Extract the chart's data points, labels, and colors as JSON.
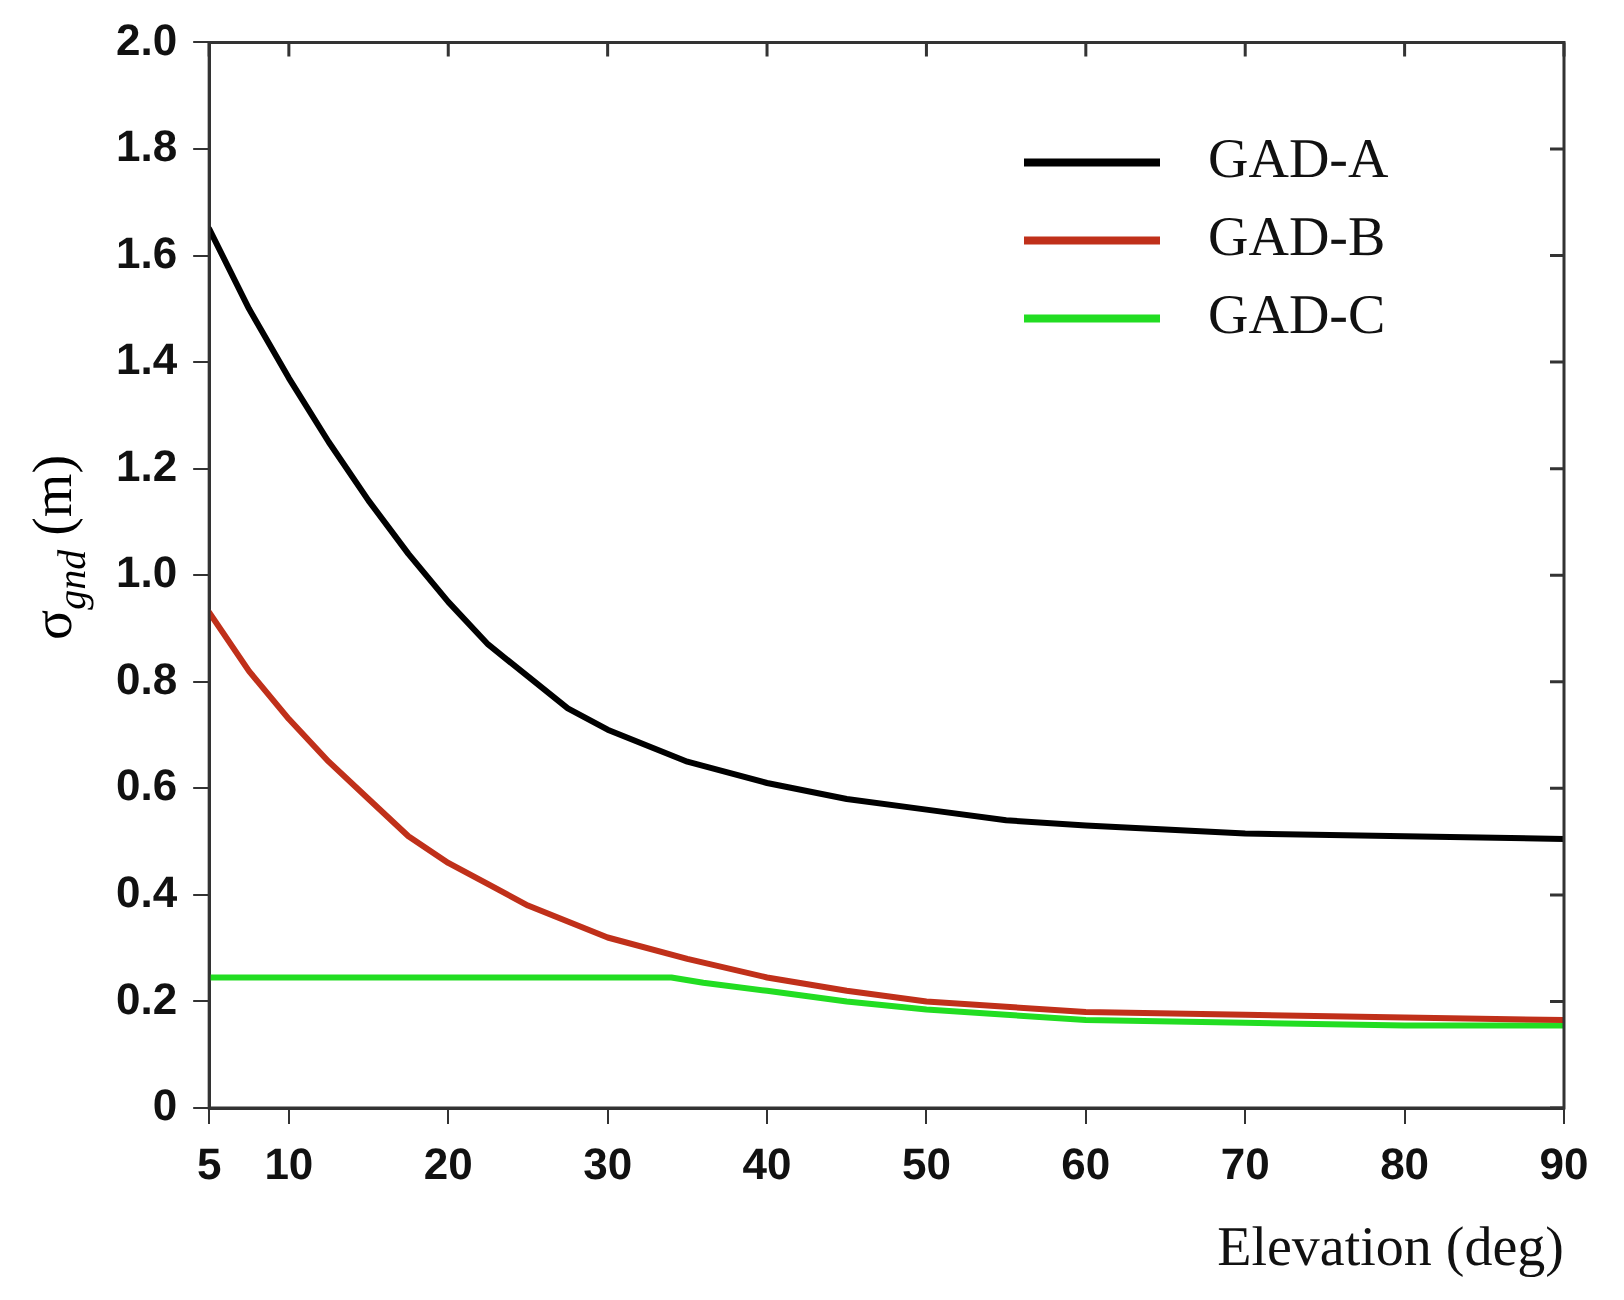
{
  "chart_data": {
    "type": "line",
    "xlabel": "Elevation (deg)",
    "ylabel": "σ$_{gnd}$ (m)",
    "xlim": [
      5,
      90
    ],
    "xticks": [
      5,
      10,
      20,
      30,
      40,
      50,
      60,
      70,
      80,
      90
    ],
    "ylim": [
      0,
      2
    ],
    "yticks": [
      0,
      0.2,
      0.4,
      0.6,
      0.8,
      {
        "value": 1,
        "label": "1.0"
      },
      1.2,
      1.4,
      1.6,
      1.8,
      {
        "value": 2,
        "label": "2.0"
      }
    ],
    "grid": false,
    "legend": "top right",
    "marker": "none",
    "line_style": "solid",
    "series": [
      {
        "name": "GAD-A",
        "color": "#000000",
        "x": [
          5,
          7.5,
          10,
          12.5,
          15,
          17.5,
          20,
          22.5,
          25,
          27.5,
          30,
          35,
          40,
          45,
          50,
          55,
          60,
          70,
          80,
          90
        ],
        "values": [
          1.65,
          1.5,
          1.37,
          1.25,
          1.14,
          1.04,
          0.95,
          0.87,
          0.81,
          0.75,
          0.71,
          0.65,
          0.61,
          0.58,
          0.56,
          0.54,
          0.53,
          0.515,
          0.51,
          0.505
        ]
      },
      {
        "name": "GAD-B",
        "color": "#c0301a",
        "x": [
          5,
          7.5,
          10,
          12.5,
          15,
          17.5,
          20,
          22.5,
          25,
          27.5,
          30,
          35,
          40,
          45,
          50,
          55,
          60,
          70,
          80,
          90
        ],
        "values": [
          0.93,
          0.82,
          0.73,
          0.65,
          0.58,
          0.51,
          0.46,
          0.42,
          0.38,
          0.35,
          0.32,
          0.28,
          0.245,
          0.22,
          0.2,
          0.19,
          0.18,
          0.175,
          0.17,
          0.165
        ]
      },
      {
        "name": "GAD-C",
        "color": "#22dd22",
        "x": [
          5,
          34,
          36,
          40,
          45,
          50,
          55,
          60,
          70,
          80,
          90
        ],
        "values": [
          0.245,
          0.245,
          0.235,
          0.22,
          0.2,
          0.185,
          0.175,
          0.165,
          0.16,
          0.155,
          0.155
        ]
      }
    ]
  }
}
